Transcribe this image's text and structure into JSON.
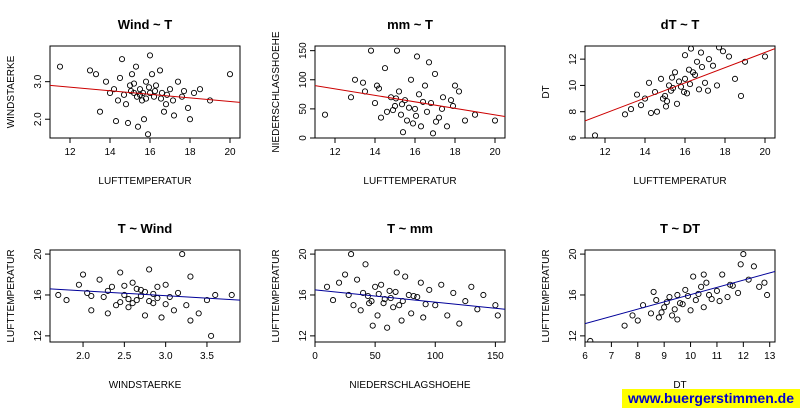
{
  "watermark": "www.buergerstimmen.de",
  "colors": {
    "red_fit": "#cc0000",
    "blue_fit": "#000099",
    "point": "#000000"
  },
  "chart_data": [
    {
      "type": "scatter",
      "title": "Wind ~ T",
      "xlabel": "LUFTTEMPERATUR",
      "ylabel": "WINDSTAERKE",
      "xlim": [
        11,
        20.5
      ],
      "ylim": [
        1.5,
        3.95
      ],
      "xticks": [
        12,
        14,
        16,
        18,
        20
      ],
      "yticks": [
        2.0,
        3.0
      ],
      "ytick_labels": [
        "2.0",
        "3.0"
      ],
      "grid": false,
      "fit_line": {
        "color": "red",
        "x": [
          11,
          20.5
        ],
        "y": [
          2.9,
          2.45
        ]
      },
      "points": [
        [
          11.5,
          3.4
        ],
        [
          13,
          3.3
        ],
        [
          13.3,
          3.2
        ],
        [
          13.8,
          3.0
        ],
        [
          14,
          2.7
        ],
        [
          14.2,
          2.8
        ],
        [
          14.5,
          3.1
        ],
        [
          14.6,
          3.6
        ],
        [
          14.8,
          2.4
        ],
        [
          15,
          2.9
        ],
        [
          15.1,
          3.2
        ],
        [
          15.2,
          2.7
        ],
        [
          15.3,
          3.4
        ],
        [
          15.5,
          2.8
        ],
        [
          15.6,
          2.5
        ],
        [
          15.8,
          3.0
        ],
        [
          16,
          2.7
        ],
        [
          16,
          3.7
        ],
        [
          16.1,
          3.2
        ],
        [
          16.2,
          2.6
        ],
        [
          16.3,
          2.9
        ],
        [
          16.5,
          3.3
        ],
        [
          16.6,
          2.7
        ],
        [
          16.8,
          2.4
        ],
        [
          17,
          2.8
        ],
        [
          17.2,
          2.1
        ],
        [
          17.4,
          3.0
        ],
        [
          17.6,
          2.6
        ],
        [
          17.9,
          2.3
        ],
        [
          18.2,
          2.7
        ],
        [
          18.5,
          2.8
        ],
        [
          19,
          2.5
        ],
        [
          20,
          3.2
        ],
        [
          14.9,
          1.9
        ],
        [
          15.4,
          1.8
        ],
        [
          15.7,
          2.0
        ],
        [
          14.3,
          1.95
        ],
        [
          13.5,
          2.2
        ],
        [
          16.7,
          2.2
        ],
        [
          15.9,
          1.6
        ],
        [
          14.7,
          2.65
        ],
        [
          15.05,
          2.75
        ],
        [
          15.35,
          2.6
        ],
        [
          15.65,
          2.7
        ],
        [
          15.95,
          2.85
        ],
        [
          16.25,
          2.75
        ],
        [
          16.55,
          2.55
        ],
        [
          16.85,
          2.65
        ],
        [
          17.15,
          2.5
        ],
        [
          15.2,
          2.95
        ],
        [
          15.5,
          2.65
        ],
        [
          15.8,
          2.55
        ],
        [
          14.4,
          2.5
        ],
        [
          18,
          2.0
        ],
        [
          17.7,
          2.75
        ]
      ]
    },
    {
      "type": "scatter",
      "title": "mm ~ T",
      "xlabel": "LUFTTEMPERATUR",
      "ylabel": "NIEDERSCHLAGSHOEHE",
      "xlim": [
        11,
        20.5
      ],
      "ylim": [
        0,
        158
      ],
      "xticks": [
        12,
        14,
        16,
        18,
        20
      ],
      "yticks": [
        0,
        50,
        100,
        150
      ],
      "grid": false,
      "fit_line": {
        "color": "red",
        "x": [
          11,
          20.5
        ],
        "y": [
          90,
          37
        ]
      },
      "points": [
        [
          11.5,
          40
        ],
        [
          12.8,
          70
        ],
        [
          13,
          100
        ],
        [
          13.5,
          80
        ],
        [
          13.8,
          150
        ],
        [
          14,
          60
        ],
        [
          14.1,
          90
        ],
        [
          14.3,
          35
        ],
        [
          14.5,
          120
        ],
        [
          14.8,
          70
        ],
        [
          15,
          55
        ],
        [
          15.1,
          150
        ],
        [
          15.2,
          80
        ],
        [
          15.3,
          40
        ],
        [
          15.5,
          65
        ],
        [
          15.6,
          30
        ],
        [
          15.8,
          100
        ],
        [
          16,
          50
        ],
        [
          16.1,
          140
        ],
        [
          16.2,
          75
        ],
        [
          16.3,
          20
        ],
        [
          16.5,
          90
        ],
        [
          16.6,
          45
        ],
        [
          16.8,
          60
        ],
        [
          17,
          110
        ],
        [
          17.2,
          35
        ],
        [
          17.4,
          70
        ],
        [
          17.6,
          20
        ],
        [
          17.9,
          55
        ],
        [
          18.2,
          80
        ],
        [
          18.5,
          30
        ],
        [
          19,
          40
        ],
        [
          20,
          30
        ],
        [
          15.4,
          10
        ],
        [
          16.9,
          8
        ],
        [
          14.6,
          45
        ],
        [
          15.7,
          52
        ],
        [
          16.4,
          62
        ],
        [
          15.05,
          68
        ],
        [
          15.35,
          58
        ],
        [
          14.9,
          48
        ],
        [
          16.05,
          38
        ],
        [
          17.05,
          28
        ],
        [
          17.35,
          50
        ],
        [
          18,
          90
        ],
        [
          16.7,
          130
        ],
        [
          15.9,
          25
        ],
        [
          14.2,
          85
        ],
        [
          13.4,
          95
        ],
        [
          17.8,
          65
        ]
      ]
    },
    {
      "type": "scatter",
      "title": "dT ~ T",
      "xlabel": "LUFTTEMPERATUR",
      "ylabel": "DT",
      "xlim": [
        11,
        20.5
      ],
      "ylim": [
        6,
        13
      ],
      "xticks": [
        12,
        14,
        16,
        18,
        20
      ],
      "yticks": [
        6,
        8,
        10,
        12
      ],
      "grid": false,
      "fit_line": {
        "color": "red",
        "x": [
          11,
          20.5
        ],
        "y": [
          7.3,
          12.8
        ]
      },
      "points": [
        [
          11.5,
          6.2
        ],
        [
          13,
          7.8
        ],
        [
          13.3,
          8.2
        ],
        [
          13.8,
          8.5
        ],
        [
          14,
          9.0
        ],
        [
          14.2,
          10.2
        ],
        [
          14.5,
          9.5
        ],
        [
          14.6,
          8.0
        ],
        [
          14.8,
          10.5
        ],
        [
          15,
          9.2
        ],
        [
          15.1,
          8.8
        ],
        [
          15.2,
          10.0
        ],
        [
          15.3,
          9.6
        ],
        [
          15.5,
          11.0
        ],
        [
          15.6,
          8.6
        ],
        [
          15.8,
          9.9
        ],
        [
          16,
          10.5
        ],
        [
          16,
          12.3
        ],
        [
          16.1,
          9.4
        ],
        [
          16.2,
          11.2
        ],
        [
          16.3,
          12.8
        ],
        [
          16.5,
          10.8
        ],
        [
          16.6,
          11.8
        ],
        [
          16.8,
          12.5
        ],
        [
          17,
          10.2
        ],
        [
          17.2,
          12.0
        ],
        [
          17.4,
          11.5
        ],
        [
          17.6,
          10.0
        ],
        [
          17.9,
          12.6
        ],
        [
          18.2,
          12.2
        ],
        [
          18.5,
          10.5
        ],
        [
          19,
          11.8
        ],
        [
          20,
          12.2
        ],
        [
          14.9,
          9.0
        ],
        [
          15.4,
          9.8
        ],
        [
          15.7,
          10.3
        ],
        [
          16.4,
          11.0
        ],
        [
          16.7,
          9.7
        ],
        [
          15.05,
          8.4
        ],
        [
          15.35,
          10.6
        ],
        [
          15.95,
          9.5
        ],
        [
          16.25,
          10.1
        ],
        [
          16.85,
          11.4
        ],
        [
          17.15,
          9.6
        ],
        [
          14.3,
          7.9
        ],
        [
          13.6,
          9.3
        ],
        [
          17.7,
          12.9
        ],
        [
          18.8,
          9.2
        ]
      ]
    },
    {
      "type": "scatter",
      "title": "T ~ Wind",
      "xlabel": "WINDSTAERKE",
      "ylabel": "LUFTTEMPERATUR",
      "xlim": [
        1.6,
        3.9
      ],
      "ylim": [
        11.4,
        20.4
      ],
      "xticks": [
        2.0,
        2.5,
        3.0,
        3.5
      ],
      "xtick_labels": [
        "2.0",
        "2.5",
        "3.0",
        "3.5"
      ],
      "yticks": [
        12,
        16,
        20
      ],
      "grid": false,
      "fit_line": {
        "color": "blue",
        "x": [
          1.6,
          3.9
        ],
        "y": [
          16.6,
          15.5
        ]
      },
      "points": [
        [
          1.7,
          16
        ],
        [
          1.8,
          15.5
        ],
        [
          1.95,
          17
        ],
        [
          2.0,
          18
        ],
        [
          2.05,
          16.2
        ],
        [
          2.1,
          14.5
        ],
        [
          2.2,
          17.5
        ],
        [
          2.25,
          15.8
        ],
        [
          2.3,
          14.2
        ],
        [
          2.35,
          16.8
        ],
        [
          2.4,
          15.0
        ],
        [
          2.45,
          18.2
        ],
        [
          2.5,
          16.0
        ],
        [
          2.55,
          14.8
        ],
        [
          2.6,
          17.2
        ],
        [
          2.65,
          15.5
        ],
        [
          2.7,
          16.5
        ],
        [
          2.75,
          14.0
        ],
        [
          2.8,
          18.5
        ],
        [
          2.85,
          15.2
        ],
        [
          2.9,
          16.8
        ],
        [
          2.95,
          13.8
        ],
        [
          3.0,
          17.0
        ],
        [
          3.05,
          15.8
        ],
        [
          3.1,
          14.5
        ],
        [
          3.15,
          16.2
        ],
        [
          3.2,
          20.0
        ],
        [
          3.25,
          15.0
        ],
        [
          3.3,
          17.8
        ],
        [
          3.4,
          14.2
        ],
        [
          3.5,
          15.5
        ],
        [
          3.55,
          12.0
        ],
        [
          3.6,
          16.0
        ],
        [
          3.8,
          16.0
        ],
        [
          2.55,
          15.6
        ],
        [
          2.7,
          15.9
        ],
        [
          2.75,
          16.3
        ],
        [
          2.8,
          15.4
        ],
        [
          2.65,
          16.6
        ],
        [
          2.6,
          15.2
        ],
        [
          2.5,
          16.9
        ],
        [
          2.45,
          15.3
        ],
        [
          2.85,
          16.1
        ],
        [
          2.9,
          15.7
        ],
        [
          3.0,
          15.1
        ],
        [
          2.3,
          16.4
        ],
        [
          2.1,
          15.9
        ],
        [
          3.3,
          13.5
        ]
      ]
    },
    {
      "type": "scatter",
      "title": "T ~ mm",
      "xlabel": "NIEDERSCHLAGSHOEHE",
      "ylabel": "LUFTTEMPERATUR",
      "xlim": [
        0,
        158
      ],
      "ylim": [
        11.4,
        20.4
      ],
      "xticks": [
        0,
        50,
        100,
        150
      ],
      "yticks": [
        12,
        16,
        20
      ],
      "grid": false,
      "fit_line": {
        "color": "blue",
        "x": [
          0,
          158
        ],
        "y": [
          16.5,
          14.6
        ]
      },
      "points": [
        [
          10,
          16.8
        ],
        [
          15,
          15.5
        ],
        [
          20,
          17.2
        ],
        [
          25,
          18.0
        ],
        [
          28,
          16.0
        ],
        [
          30,
          20.0
        ],
        [
          32,
          15.0
        ],
        [
          35,
          17.5
        ],
        [
          38,
          14.5
        ],
        [
          40,
          16.2
        ],
        [
          42,
          19.0
        ],
        [
          45,
          15.2
        ],
        [
          48,
          13.0
        ],
        [
          50,
          16.8
        ],
        [
          52,
          14.0
        ],
        [
          55,
          17.0
        ],
        [
          58,
          15.6
        ],
        [
          60,
          12.8
        ],
        [
          62,
          16.4
        ],
        [
          65,
          14.8
        ],
        [
          68,
          18.2
        ],
        [
          70,
          15.0
        ],
        [
          72,
          13.5
        ],
        [
          75,
          17.8
        ],
        [
          78,
          16.0
        ],
        [
          80,
          14.2
        ],
        [
          85,
          15.8
        ],
        [
          88,
          17.2
        ],
        [
          90,
          13.8
        ],
        [
          95,
          16.5
        ],
        [
          100,
          15.0
        ],
        [
          105,
          17.0
        ],
        [
          110,
          14.0
        ],
        [
          115,
          16.2
        ],
        [
          120,
          13.2
        ],
        [
          125,
          15.4
        ],
        [
          130,
          16.8
        ],
        [
          135,
          14.6
        ],
        [
          140,
          16.0
        ],
        [
          150,
          15.0
        ],
        [
          152,
          14.0
        ],
        [
          44,
          15.9
        ],
        [
          47,
          15.4
        ],
        [
          53,
          16.1
        ],
        [
          57,
          15.2
        ],
        [
          63,
          15.7
        ],
        [
          67,
          16.3
        ],
        [
          73,
          15.4
        ],
        [
          82,
          15.9
        ],
        [
          92,
          15.1
        ]
      ]
    },
    {
      "type": "scatter",
      "title": "T ~ DT",
      "xlabel": "DT",
      "ylabel": "LUFTTEMPERATUR",
      "xlim": [
        6,
        13.2
      ],
      "ylim": [
        11.4,
        20.4
      ],
      "xticks": [
        6,
        7,
        8,
        9,
        10,
        11,
        12,
        13
      ],
      "yticks": [
        12,
        16,
        20
      ],
      "grid": false,
      "fit_line": {
        "color": "blue",
        "x": [
          6,
          13.2
        ],
        "y": [
          13.2,
          18.3
        ]
      },
      "points": [
        [
          6.2,
          11.5
        ],
        [
          7.5,
          13.0
        ],
        [
          7.8,
          14.0
        ],
        [
          8.0,
          13.5
        ],
        [
          8.2,
          15.0
        ],
        [
          8.5,
          14.2
        ],
        [
          8.7,
          15.5
        ],
        [
          8.8,
          13.8
        ],
        [
          9.0,
          14.8
        ],
        [
          9.2,
          15.8
        ],
        [
          9.3,
          14.0
        ],
        [
          9.5,
          16.0
        ],
        [
          9.6,
          15.2
        ],
        [
          9.8,
          16.5
        ],
        [
          10.0,
          14.5
        ],
        [
          10.1,
          17.8
        ],
        [
          10.2,
          15.5
        ],
        [
          10.4,
          16.8
        ],
        [
          10.5,
          14.8
        ],
        [
          10.6,
          17.2
        ],
        [
          10.8,
          15.6
        ],
        [
          11.0,
          16.4
        ],
        [
          11.2,
          18.0
        ],
        [
          11.4,
          15.8
        ],
        [
          11.5,
          17.0
        ],
        [
          11.8,
          16.2
        ],
        [
          12.0,
          20.0
        ],
        [
          12.2,
          17.5
        ],
        [
          12.4,
          18.8
        ],
        [
          12.6,
          16.8
        ],
        [
          12.8,
          17.2
        ],
        [
          12.9,
          16.0
        ],
        [
          9.1,
          15.3
        ],
        [
          9.4,
          14.6
        ],
        [
          9.7,
          15.1
        ],
        [
          9.9,
          15.9
        ],
        [
          10.3,
          16.1
        ],
        [
          8.6,
          16.3
        ],
        [
          8.9,
          14.3
        ],
        [
          10.7,
          16.0
        ],
        [
          11.1,
          15.4
        ],
        [
          11.6,
          16.9
        ],
        [
          9.5,
          13.6
        ],
        [
          10.5,
          18.0
        ],
        [
          11.9,
          19.0
        ]
      ]
    }
  ]
}
